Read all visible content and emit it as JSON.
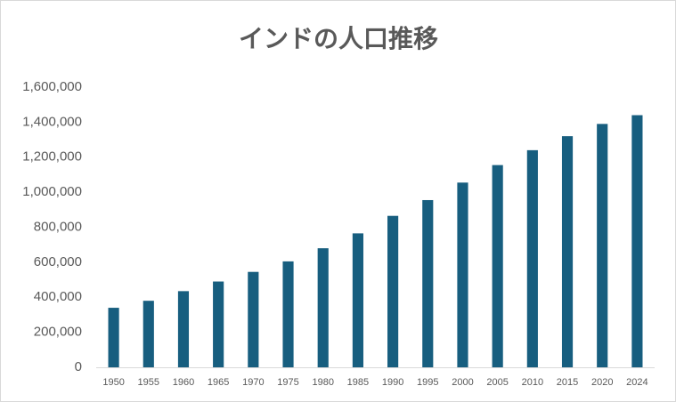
{
  "chart_data": {
    "type": "bar",
    "title": "インドの人口推移",
    "categories": [
      "1950",
      "1955",
      "1960",
      "1965",
      "1970",
      "1975",
      "1980",
      "1985",
      "1990",
      "1995",
      "2000",
      "2005",
      "2010",
      "2015",
      "2020",
      "2024"
    ],
    "values": [
      340000,
      380000,
      435000,
      490000,
      545000,
      605000,
      680000,
      765000,
      865000,
      955000,
      1055000,
      1155000,
      1240000,
      1320000,
      1390000,
      1440000
    ],
    "color": "#175e7f",
    "ylim": [
      0,
      1600000
    ],
    "yticks": [
      0,
      {
        "value": 200000,
        "label": "200,000"
      },
      {
        "value": 400000,
        "label": "400,000"
      },
      {
        "value": 600000,
        "label": "600,000"
      },
      {
        "value": 800000,
        "label": "800,000"
      },
      {
        "value": 1000000,
        "label": "1,000,000"
      },
      {
        "value": 1200000,
        "label": "1,200,000"
      },
      {
        "value": 1400000,
        "label": "1,400,000"
      },
      {
        "value": 1600000,
        "label": "1,600,000"
      }
    ],
    "grid": false
  }
}
